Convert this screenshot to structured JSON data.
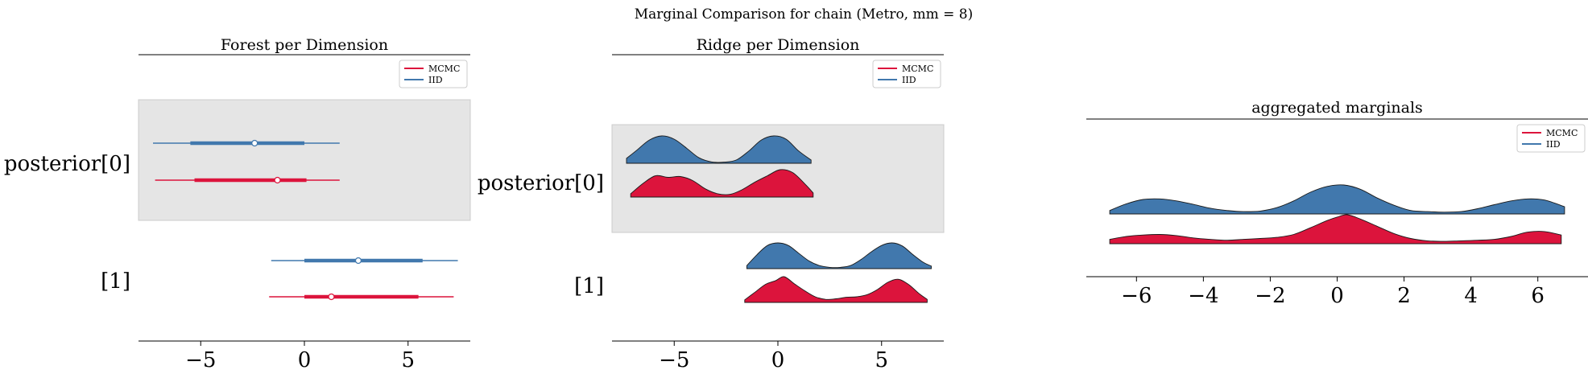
{
  "figure": {
    "suptitle": "Marginal Comparison for chain (Metro, mm = 8)"
  },
  "colors": {
    "MCMC": "#dc143c",
    "IID": "#4178ad",
    "band": "#e5e5e5",
    "ink": "#000000"
  },
  "legend_entries": [
    "MCMC",
    "IID"
  ],
  "chart_data": [
    {
      "type": "forest",
      "title": "Forest per Dimension",
      "legend_placement": "top-right",
      "xlim": [
        -8.0,
        8.0
      ],
      "xticks": [
        -5,
        0,
        5
      ],
      "xtick_labels": [
        "−5",
        "0",
        "5"
      ],
      "dimensions": [
        "posterior[0]",
        "[1]"
      ],
      "shaded_dimension": "posterior[0]",
      "series": [
        {
          "name": "IID",
          "dim": "posterior[0]",
          "whisker": [
            -7.3,
            1.7
          ],
          "box": [
            -5.5,
            0.0
          ],
          "point": -2.4
        },
        {
          "name": "MCMC",
          "dim": "posterior[0]",
          "whisker": [
            -7.2,
            1.7
          ],
          "box": [
            -5.3,
            0.1
          ],
          "point": -1.3
        },
        {
          "name": "IID",
          "dim": "[1]",
          "whisker": [
            -1.6,
            7.4
          ],
          "box": [
            0.0,
            5.7
          ],
          "point": 2.6
        },
        {
          "name": "MCMC",
          "dim": "[1]",
          "whisker": [
            -1.7,
            7.2
          ],
          "box": [
            0.0,
            5.5
          ],
          "point": 1.3
        }
      ]
    },
    {
      "type": "ridge",
      "title": "Ridge per Dimension",
      "legend_placement": "top-right",
      "xlim": [
        -8.0,
        8.0
      ],
      "xticks": [
        -5,
        0,
        5
      ],
      "xtick_labels": [
        "−5",
        "0",
        "5"
      ],
      "dimensions": [
        "posterior[0]",
        "[1]"
      ],
      "shaded_dimension": "posterior[0]",
      "series": [
        {
          "name": "IID",
          "dim": "posterior[0]",
          "x": [
            -7.3,
            -6.8,
            -6.2,
            -5.6,
            -5.0,
            -4.4,
            -3.8,
            -3.2,
            -2.6,
            -2.0,
            -1.4,
            -0.8,
            -0.2,
            0.4,
            1.0,
            1.6
          ],
          "y": [
            0.18,
            0.48,
            0.85,
            1.0,
            0.88,
            0.55,
            0.2,
            0.05,
            0.04,
            0.12,
            0.45,
            0.85,
            1.0,
            0.88,
            0.45,
            0.12
          ]
        },
        {
          "name": "MCMC",
          "dim": "posterior[0]",
          "x": [
            -7.1,
            -6.5,
            -5.9,
            -5.3,
            -4.7,
            -4.1,
            -3.5,
            -2.9,
            -2.3,
            -1.7,
            -1.1,
            -0.5,
            0.1,
            0.7,
            1.3,
            1.7
          ],
          "y": [
            0.12,
            0.5,
            0.78,
            0.72,
            0.75,
            0.6,
            0.3,
            0.12,
            0.1,
            0.28,
            0.55,
            0.78,
            1.0,
            0.9,
            0.48,
            0.15
          ]
        },
        {
          "name": "IID",
          "dim": "[1]",
          "x": [
            -1.5,
            -1.0,
            -0.5,
            0.0,
            0.5,
            1.0,
            1.5,
            2.0,
            2.5,
            3.0,
            3.5,
            4.0,
            4.5,
            5.0,
            5.5,
            6.0,
            6.5,
            7.0,
            7.4
          ],
          "y": [
            0.12,
            0.55,
            0.9,
            1.0,
            0.9,
            0.6,
            0.3,
            0.12,
            0.05,
            0.05,
            0.12,
            0.35,
            0.65,
            0.9,
            1.0,
            0.88,
            0.55,
            0.25,
            0.1
          ]
        },
        {
          "name": "MCMC",
          "dim": "[1]",
          "x": [
            -1.6,
            -1.1,
            -0.6,
            -0.1,
            0.3,
            0.8,
            1.3,
            1.8,
            2.3,
            2.8,
            3.3,
            3.8,
            4.3,
            4.8,
            5.3,
            5.8,
            6.3,
            6.8,
            7.2
          ],
          "y": [
            0.1,
            0.4,
            0.7,
            0.85,
            1.0,
            0.72,
            0.45,
            0.22,
            0.12,
            0.14,
            0.2,
            0.22,
            0.3,
            0.5,
            0.78,
            0.9,
            0.7,
            0.35,
            0.12
          ]
        }
      ]
    },
    {
      "type": "ridge",
      "title": "aggregated marginals",
      "legend_placement": "top-right",
      "xlim": [
        -7.5,
        7.5
      ],
      "xticks": [
        -6,
        -4,
        -2,
        0,
        2,
        4,
        6
      ],
      "xtick_labels": [
        "−6",
        "−4",
        "−2",
        "0",
        "2",
        "4",
        "6"
      ],
      "series": [
        {
          "name": "IID",
          "x": [
            -6.8,
            -6.3,
            -5.8,
            -5.3,
            -4.8,
            -4.3,
            -3.8,
            -3.3,
            -2.8,
            -2.3,
            -1.8,
            -1.3,
            -0.8,
            -0.3,
            0.2,
            0.7,
            1.2,
            1.7,
            2.2,
            2.7,
            3.2,
            3.7,
            4.2,
            4.7,
            5.2,
            5.7,
            6.2,
            6.8
          ],
          "y": [
            0.12,
            0.35,
            0.5,
            0.52,
            0.45,
            0.33,
            0.2,
            0.12,
            0.08,
            0.1,
            0.22,
            0.45,
            0.75,
            0.95,
            1.0,
            0.85,
            0.55,
            0.3,
            0.12,
            0.08,
            0.06,
            0.08,
            0.18,
            0.32,
            0.45,
            0.52,
            0.48,
            0.25
          ]
        },
        {
          "name": "MCMC",
          "x": [
            -6.8,
            -6.3,
            -5.8,
            -5.3,
            -4.8,
            -4.3,
            -3.8,
            -3.3,
            -2.8,
            -2.3,
            -1.8,
            -1.3,
            -0.8,
            -0.3,
            0.0,
            0.3,
            0.7,
            1.2,
            1.7,
            2.2,
            2.7,
            3.2,
            3.7,
            4.2,
            4.7,
            5.2,
            5.7,
            6.2,
            6.7
          ],
          "y": [
            0.15,
            0.25,
            0.3,
            0.32,
            0.28,
            0.2,
            0.15,
            0.12,
            0.15,
            0.18,
            0.22,
            0.32,
            0.55,
            0.8,
            0.92,
            1.0,
            0.85,
            0.6,
            0.35,
            0.18,
            0.1,
            0.08,
            0.1,
            0.12,
            0.15,
            0.25,
            0.4,
            0.42,
            0.3
          ]
        }
      ]
    }
  ]
}
